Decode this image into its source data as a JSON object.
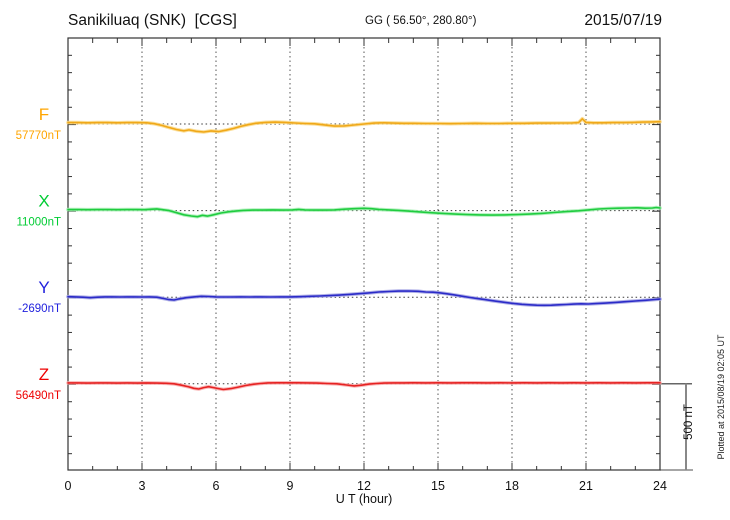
{
  "header": {
    "title": "Sanikiluaq (SNK)  [CGS]",
    "coordinates": "GG ( 56.50°, 280.80°)",
    "date": "2015/07/19"
  },
  "side_note": "Plotted at 2015/08/19 02:05 UT",
  "scale_bar": {
    "label": "500 nT",
    "nT": 500
  },
  "chart_data": {
    "type": "line",
    "title": "Sanikiluaq (SNK)  [CGS] magnetogram 2015/07/19",
    "xlabel": "U T (hour)",
    "x_range": [
      0,
      24
    ],
    "x_major_ticks": [
      0,
      3,
      6,
      9,
      12,
      15,
      18,
      21,
      24
    ],
    "x_minor_step_hours": 1,
    "grid_hours": [
      3,
      6,
      9,
      12,
      15,
      18,
      21
    ],
    "y_minor_division_nT": 100,
    "trace_spacing_nT": 500,
    "scale_bar_nT": 500,
    "grid": "dotted",
    "legend_position": "left-of-each-trace",
    "series": [
      {
        "channel": "F",
        "baseline_label": "57770nT",
        "baseline_nT": 57770,
        "label_color": "#FFA500",
        "color": "#F0A818",
        "halo": "#FAD98A",
        "points": [
          [
            0,
            8
          ],
          [
            0.4,
            8
          ],
          [
            0.8,
            7
          ],
          [
            1.2,
            8
          ],
          [
            1.6,
            8
          ],
          [
            2,
            7
          ],
          [
            2.4,
            8
          ],
          [
            2.8,
            8
          ],
          [
            3.2,
            7
          ],
          [
            3.5,
            2
          ],
          [
            3.8,
            -8
          ],
          [
            4.1,
            -20
          ],
          [
            4.4,
            -32
          ],
          [
            4.7,
            -40
          ],
          [
            4.9,
            -34
          ],
          [
            5.2,
            -42
          ],
          [
            5.5,
            -46
          ],
          [
            5.8,
            -40
          ],
          [
            6.1,
            -44
          ],
          [
            6.4,
            -36
          ],
          [
            6.7,
            -26
          ],
          [
            7,
            -14
          ],
          [
            7.3,
            -4
          ],
          [
            7.6,
            4
          ],
          [
            8,
            9
          ],
          [
            8.4,
            11
          ],
          [
            8.8,
            9
          ],
          [
            9.2,
            6
          ],
          [
            9.6,
            3
          ],
          [
            10,
            1
          ],
          [
            10.4,
            -5
          ],
          [
            10.8,
            -12
          ],
          [
            11.2,
            -11
          ],
          [
            11.6,
            -6
          ],
          [
            12,
            0
          ],
          [
            12.4,
            5
          ],
          [
            12.8,
            7
          ],
          [
            13.2,
            5
          ],
          [
            13.6,
            4
          ],
          [
            14,
            4
          ],
          [
            14.5,
            3
          ],
          [
            15,
            3
          ],
          [
            15.5,
            2
          ],
          [
            16,
            3
          ],
          [
            16.5,
            4
          ],
          [
            17,
            3
          ],
          [
            17.5,
            3
          ],
          [
            18,
            4
          ],
          [
            18.5,
            4
          ],
          [
            19,
            5
          ],
          [
            19.5,
            5
          ],
          [
            20,
            6
          ],
          [
            20.4,
            6
          ],
          [
            20.7,
            8
          ],
          [
            20.85,
            30
          ],
          [
            21,
            9
          ],
          [
            21.3,
            7
          ],
          [
            21.7,
            7
          ],
          [
            22.1,
            8
          ],
          [
            22.5,
            8
          ],
          [
            22.9,
            9
          ],
          [
            23.3,
            11
          ],
          [
            23.7,
            12
          ],
          [
            24,
            13
          ]
        ]
      },
      {
        "channel": "X",
        "baseline_label": "11000nT",
        "baseline_nT": 11000,
        "label_color": "#00CC33",
        "color": "#1FCC3F",
        "halo": "#A5EFB2",
        "points": [
          [
            0,
            6
          ],
          [
            0.4,
            6
          ],
          [
            0.8,
            5
          ],
          [
            1.2,
            6
          ],
          [
            1.6,
            6
          ],
          [
            2,
            5
          ],
          [
            2.4,
            6
          ],
          [
            2.8,
            6
          ],
          [
            3.1,
            5
          ],
          [
            3.4,
            8
          ],
          [
            3.6,
            10
          ],
          [
            3.8,
            6
          ],
          [
            4.1,
            0
          ],
          [
            4.4,
            -12
          ],
          [
            4.7,
            -24
          ],
          [
            5,
            -31
          ],
          [
            5.25,
            -35
          ],
          [
            5.45,
            -27
          ],
          [
            5.65,
            -32
          ],
          [
            5.9,
            -24
          ],
          [
            6.2,
            -14
          ],
          [
            6.5,
            -7
          ],
          [
            6.8,
            -3
          ],
          [
            7.1,
            1
          ],
          [
            7.5,
            3
          ],
          [
            7.9,
            3
          ],
          [
            8.3,
            4
          ],
          [
            8.7,
            3
          ],
          [
            9.1,
            4
          ],
          [
            9.35,
            7
          ],
          [
            9.6,
            4
          ],
          [
            10,
            3
          ],
          [
            10.4,
            3
          ],
          [
            10.8,
            4
          ],
          [
            11.2,
            8
          ],
          [
            11.6,
            11
          ],
          [
            12,
            13
          ],
          [
            12.3,
            11
          ],
          [
            12.6,
            7
          ],
          [
            13,
            4
          ],
          [
            13.4,
            1
          ],
          [
            13.8,
            -3
          ],
          [
            14.2,
            -7
          ],
          [
            14.7,
            -12
          ],
          [
            15.2,
            -16
          ],
          [
            15.7,
            -20
          ],
          [
            16.2,
            -23
          ],
          [
            16.7,
            -25
          ],
          [
            17.2,
            -26
          ],
          [
            17.7,
            -25
          ],
          [
            18.2,
            -23
          ],
          [
            18.7,
            -20
          ],
          [
            19.2,
            -16
          ],
          [
            19.7,
            -11
          ],
          [
            20.2,
            -6
          ],
          [
            20.7,
            -1
          ],
          [
            21.1,
            4
          ],
          [
            21.5,
            9
          ],
          [
            21.9,
            12
          ],
          [
            22.3,
            14
          ],
          [
            22.7,
            15
          ],
          [
            23.1,
            16
          ],
          [
            23.4,
            14
          ],
          [
            23.7,
            15
          ],
          [
            23.85,
            18
          ],
          [
            24,
            15
          ]
        ]
      },
      {
        "channel": "Y",
        "baseline_label": "-2690nT",
        "baseline_nT": -2690,
        "label_color": "#2222DD",
        "color": "#2B2BC8",
        "halo": "#A3A3E3",
        "points": [
          [
            0,
            3
          ],
          [
            0.3,
            2
          ],
          [
            0.6,
            0
          ],
          [
            0.9,
            -3
          ],
          [
            1.2,
            0
          ],
          [
            1.5,
            2
          ],
          [
            1.8,
            2
          ],
          [
            2.1,
            1
          ],
          [
            2.4,
            2
          ],
          [
            2.7,
            2
          ],
          [
            3,
            1
          ],
          [
            3.3,
            2
          ],
          [
            3.6,
            0
          ],
          [
            3.9,
            -8
          ],
          [
            4.1,
            -14
          ],
          [
            4.3,
            -16
          ],
          [
            4.5,
            -10
          ],
          [
            4.8,
            -3
          ],
          [
            5.1,
            2
          ],
          [
            5.4,
            5
          ],
          [
            5.7,
            4
          ],
          [
            6,
            2
          ],
          [
            6.3,
            1
          ],
          [
            6.6,
            1
          ],
          [
            7,
            2
          ],
          [
            7.4,
            1
          ],
          [
            7.8,
            2
          ],
          [
            8.2,
            1
          ],
          [
            8.6,
            2
          ],
          [
            9,
            2
          ],
          [
            9.4,
            3
          ],
          [
            9.8,
            5
          ],
          [
            10.2,
            7
          ],
          [
            10.6,
            9
          ],
          [
            11,
            12
          ],
          [
            11.4,
            16
          ],
          [
            11.8,
            20
          ],
          [
            12.2,
            25
          ],
          [
            12.6,
            30
          ],
          [
            13,
            33
          ],
          [
            13.4,
            35
          ],
          [
            13.8,
            36
          ],
          [
            14.2,
            34
          ],
          [
            14.5,
            30
          ],
          [
            14.8,
            29
          ],
          [
            15.1,
            25
          ],
          [
            15.4,
            19
          ],
          [
            15.7,
            12
          ],
          [
            16,
            5
          ],
          [
            16.3,
            -2
          ],
          [
            16.6,
            -8
          ],
          [
            16.9,
            -14
          ],
          [
            17.2,
            -20
          ],
          [
            17.5,
            -26
          ],
          [
            17.8,
            -32
          ],
          [
            18.1,
            -37
          ],
          [
            18.4,
            -41
          ],
          [
            18.7,
            -44
          ],
          [
            19,
            -46
          ],
          [
            19.3,
            -47
          ],
          [
            19.6,
            -46
          ],
          [
            19.9,
            -44
          ],
          [
            20.2,
            -42
          ],
          [
            20.5,
            -40
          ],
          [
            20.8,
            -38
          ],
          [
            21.1,
            -39
          ],
          [
            21.4,
            -37
          ],
          [
            21.8,
            -34
          ],
          [
            22.2,
            -30
          ],
          [
            22.6,
            -26
          ],
          [
            23,
            -22
          ],
          [
            23.4,
            -18
          ],
          [
            23.8,
            -13
          ],
          [
            24,
            -11
          ]
        ]
      },
      {
        "channel": "Z",
        "baseline_label": "56490nT",
        "baseline_nT": 56490,
        "label_color": "#EE0000",
        "color": "#E62222",
        "halo": "#F8A9A9",
        "points": [
          [
            0,
            5
          ],
          [
            0.4,
            5
          ],
          [
            0.8,
            4
          ],
          [
            1.2,
            5
          ],
          [
            1.6,
            5
          ],
          [
            2,
            4
          ],
          [
            2.4,
            5
          ],
          [
            2.8,
            4
          ],
          [
            3.2,
            5
          ],
          [
            3.6,
            4
          ],
          [
            4,
            3
          ],
          [
            4.3,
            0
          ],
          [
            4.6,
            -8
          ],
          [
            4.9,
            -18
          ],
          [
            5.1,
            -26
          ],
          [
            5.3,
            -30
          ],
          [
            5.5,
            -22
          ],
          [
            5.7,
            -17
          ],
          [
            5.9,
            -22
          ],
          [
            6.1,
            -28
          ],
          [
            6.3,
            -33
          ],
          [
            6.6,
            -28
          ],
          [
            6.9,
            -19
          ],
          [
            7.2,
            -10
          ],
          [
            7.5,
            -3
          ],
          [
            7.8,
            2
          ],
          [
            8.1,
            5
          ],
          [
            8.5,
            6
          ],
          [
            8.9,
            6
          ],
          [
            9.3,
            6
          ],
          [
            9.7,
            5
          ],
          [
            10.1,
            4
          ],
          [
            10.5,
            2
          ],
          [
            10.9,
            0
          ],
          [
            11.3,
            -7
          ],
          [
            11.6,
            -12
          ],
          [
            11.9,
            -8
          ],
          [
            12.2,
            -2
          ],
          [
            12.5,
            2
          ],
          [
            12.8,
            4
          ],
          [
            13.2,
            5
          ],
          [
            13.6,
            5
          ],
          [
            14,
            6
          ],
          [
            14.5,
            5
          ],
          [
            15,
            6
          ],
          [
            15.5,
            5
          ],
          [
            16,
            6
          ],
          [
            16.5,
            6
          ],
          [
            17,
            5
          ],
          [
            17.5,
            6
          ],
          [
            18,
            5
          ],
          [
            18.5,
            6
          ],
          [
            19,
            5
          ],
          [
            19.5,
            6
          ],
          [
            20,
            5
          ],
          [
            20.5,
            6
          ],
          [
            21,
            5
          ],
          [
            21.5,
            6
          ],
          [
            22,
            5
          ],
          [
            22.5,
            6
          ],
          [
            23,
            5
          ],
          [
            23.5,
            6
          ],
          [
            24,
            6
          ]
        ]
      }
    ]
  }
}
